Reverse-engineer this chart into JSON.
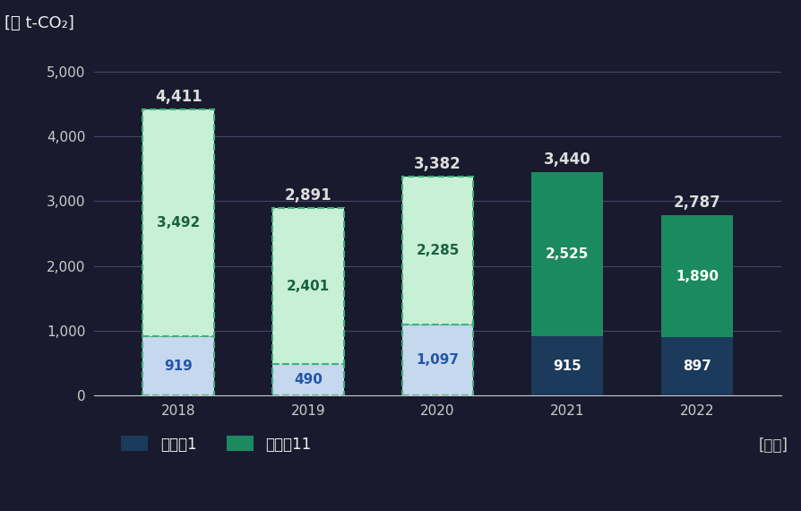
{
  "years": [
    "2018",
    "2019",
    "2020",
    "2021",
    "2022"
  ],
  "cat1": [
    919,
    490,
    1097,
    915,
    897
  ],
  "cat11": [
    3492,
    2401,
    2285,
    2525,
    1890
  ],
  "totals": [
    4411,
    2891,
    3382,
    3440,
    2787
  ],
  "cat1_color_light": "#c5d8ed",
  "cat11_color_light": "#c8f0d5",
  "cat1_color_dark": "#1b3a5c",
  "cat11_color_dark": "#1b8a60",
  "edge_color_light": "#40b080",
  "ylabel": "[千 t-CO₂]",
  "xlabel": "[年度]",
  "ylim": [
    0,
    5400
  ],
  "yticks": [
    0,
    1000,
    2000,
    3000,
    4000,
    5000
  ],
  "legend_cat1": "カテコ1",
  "legend_cat11": "カテコ11",
  "bar_width": 0.55,
  "bg_color": "#1a1a2e",
  "text_color": "#f0f0f0",
  "grid_color": "#444466",
  "tick_color": "#cccccc",
  "total_label_color_light": "#222222",
  "total_label_color_dark": "#222222",
  "label_fontsize": 11,
  "total_fontsize": 12,
  "axis_label_fontsize": 13,
  "tick_fontsize": 11
}
